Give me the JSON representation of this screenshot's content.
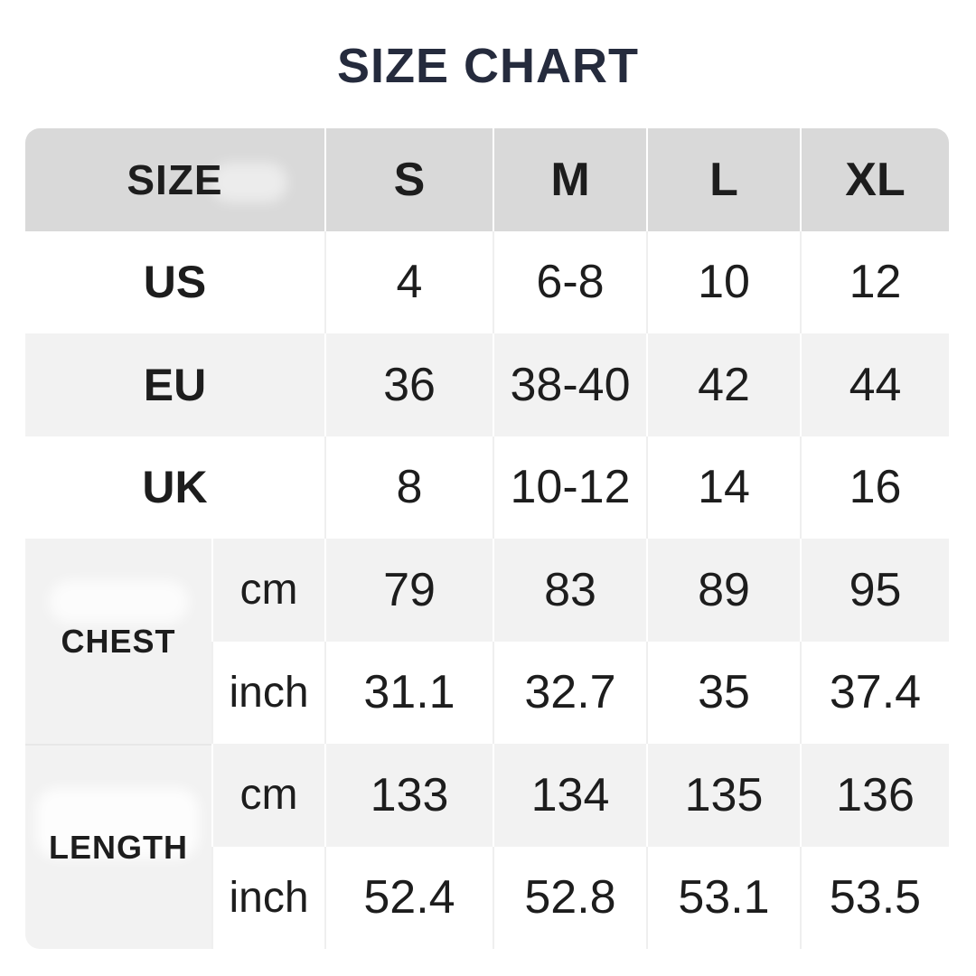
{
  "page": {
    "title": "SIZE CHART",
    "title_color": "#252b3d",
    "background": "#ffffff"
  },
  "table": {
    "colors": {
      "header_bg": "#d9d9d9",
      "stripe_bg": "#f2f2f2",
      "row_bg": "#ffffff",
      "text": "#1d1d1d"
    },
    "header": {
      "label": "SIZE",
      "columns": [
        "S",
        "M",
        "L",
        "XL"
      ]
    },
    "region_rows": [
      {
        "label": "US",
        "values": [
          "4",
          "6-8",
          "10",
          "12"
        ]
      },
      {
        "label": "EU",
        "values": [
          "36",
          "38-40",
          "42",
          "44"
        ]
      },
      {
        "label": "UK",
        "values": [
          "8",
          "10-12",
          "14",
          "16"
        ]
      }
    ],
    "measure_sections": [
      {
        "label": "CHEST",
        "rows": [
          {
            "unit": "cm",
            "values": [
              "79",
              "83",
              "89",
              "95"
            ]
          },
          {
            "unit": "inch",
            "values": [
              "31.1",
              "32.7",
              "35",
              "37.4"
            ]
          }
        ]
      },
      {
        "label": "LENGTH",
        "rows": [
          {
            "unit": "cm",
            "values": [
              "133",
              "134",
              "135",
              "136"
            ]
          },
          {
            "unit": "inch",
            "values": [
              "52.4",
              "52.8",
              "53.1",
              "53.5"
            ]
          }
        ]
      }
    ]
  },
  "chart_data": {
    "type": "table",
    "title": "SIZE CHART",
    "columns": [
      "SIZE",
      "S",
      "M",
      "L",
      "XL"
    ],
    "rows": [
      [
        "US",
        "4",
        "6-8",
        "10",
        "12"
      ],
      [
        "EU",
        "36",
        "38-40",
        "42",
        "44"
      ],
      [
        "UK",
        "8",
        "10-12",
        "14",
        "16"
      ],
      [
        "CHEST cm",
        "79",
        "83",
        "89",
        "95"
      ],
      [
        "CHEST inch",
        "31.1",
        "32.7",
        "35",
        "37.4"
      ],
      [
        "LENGTH cm",
        "133",
        "134",
        "135",
        "136"
      ],
      [
        "LENGTH inch",
        "52.4",
        "52.8",
        "53.1",
        "53.5"
      ]
    ]
  }
}
